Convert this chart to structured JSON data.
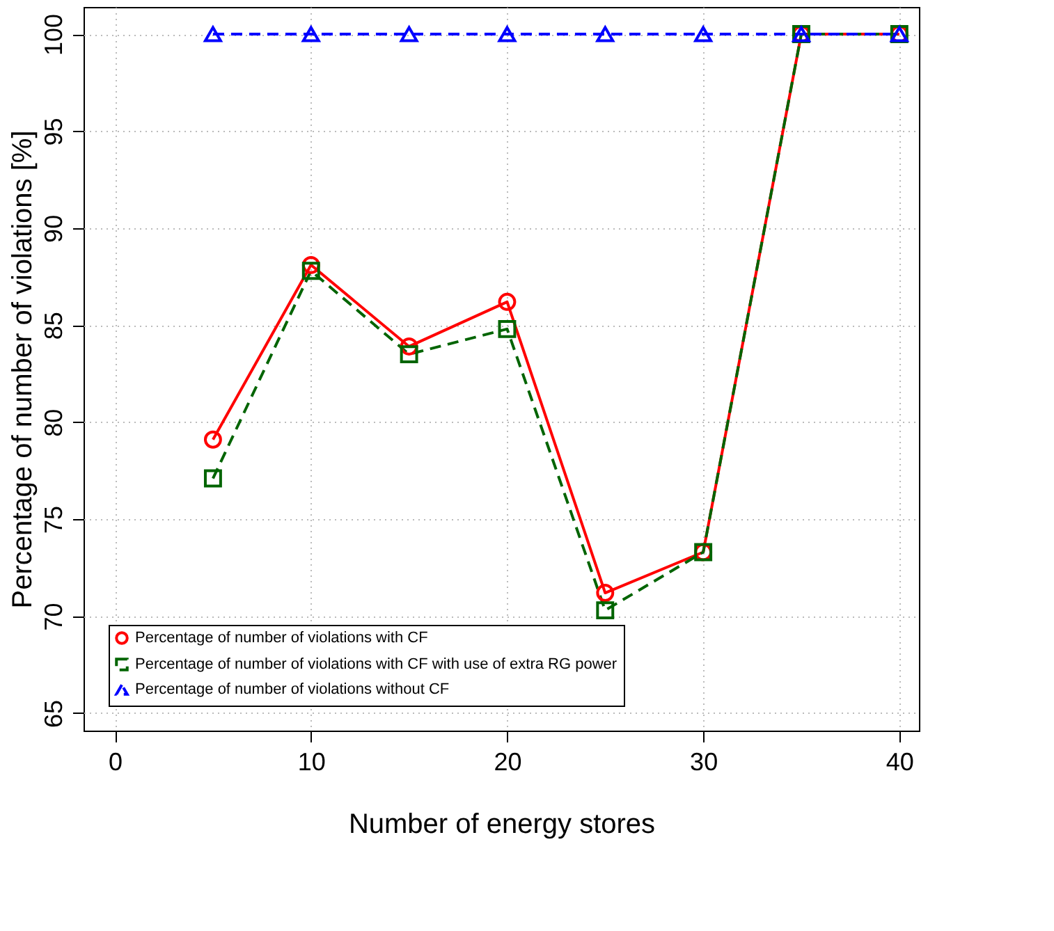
{
  "chart_data": {
    "type": "line",
    "xlabel": "Number of energy stores",
    "ylabel": "Percentage of number of violations [%]",
    "x": [
      5,
      10,
      15,
      20,
      25,
      30,
      35,
      40
    ],
    "series": [
      {
        "name": "Percentage of number of violations with CF",
        "color": "#ff0000",
        "marker": "circle",
        "line_style": "solid",
        "values": [
          79.1,
          88.1,
          83.9,
          86.2,
          71.2,
          73.3,
          100,
          100
        ]
      },
      {
        "name": "Percentage of number of violations with CF with use of extra RG power",
        "color": "#006400",
        "marker": "square",
        "line_style": "dashed",
        "values": [
          77.1,
          87.8,
          83.5,
          84.8,
          70.3,
          73.3,
          100,
          100
        ]
      },
      {
        "name": "Percentage of number of violations without CF",
        "color": "#0000ff",
        "marker": "triangle",
        "line_style": "dashed",
        "values": [
          100,
          100,
          100,
          100,
          100,
          100,
          100,
          100
        ]
      }
    ],
    "xlim": [
      -1.6,
      41
    ],
    "ylim": [
      64.1,
      101.4
    ],
    "xticks": [
      0,
      10,
      20,
      30,
      40
    ],
    "yticks": [
      65,
      70,
      75,
      80,
      85,
      90,
      95,
      100
    ],
    "grid": true,
    "legend": "bottom left"
  }
}
